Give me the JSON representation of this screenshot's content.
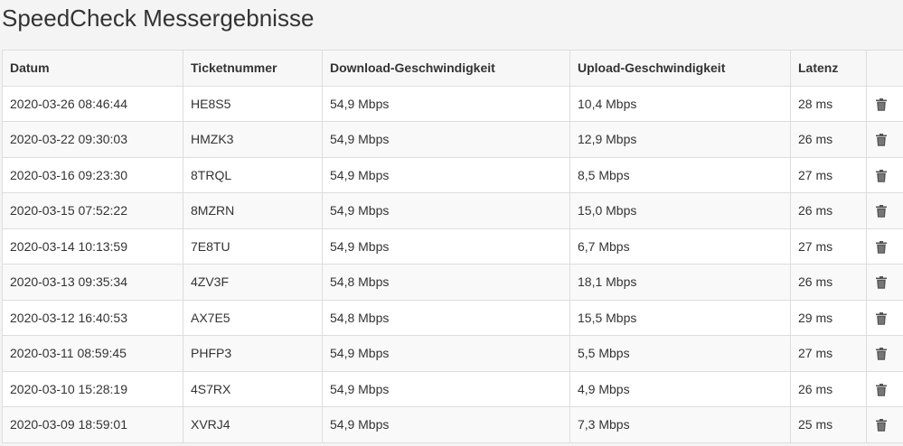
{
  "title": "SpeedCheck Messergebnisse",
  "columns": [
    "Datum",
    "Ticketnummer",
    "Download-Geschwindigkeit",
    "Upload-Geschwindigkeit",
    "Latenz",
    ""
  ],
  "rows": [
    [
      "2020-03-26 08:46:44",
      "HE8S5",
      "54,9 Mbps",
      "10,4 Mbps",
      "28 ms"
    ],
    [
      "2020-03-22 09:30:03",
      "HMZK3",
      "54,9 Mbps",
      "12,9 Mbps",
      "26 ms"
    ],
    [
      "2020-03-16 09:23:30",
      "8TRQL",
      "54,9 Mbps",
      "8,5 Mbps",
      "27 ms"
    ],
    [
      "2020-03-15 07:52:22",
      "8MZRN",
      "54,9 Mbps",
      "15,0 Mbps",
      "26 ms"
    ],
    [
      "2020-03-14 10:13:59",
      "7E8TU",
      "54,9 Mbps",
      "6,7 Mbps",
      "27 ms"
    ],
    [
      "2020-03-13 09:35:34",
      "4ZV3F",
      "54,8 Mbps",
      "18,1 Mbps",
      "26 ms"
    ],
    [
      "2020-03-12 16:40:53",
      "AX7E5",
      "54,8 Mbps",
      "15,5 Mbps",
      "29 ms"
    ],
    [
      "2020-03-11 08:59:45",
      "PHFP3",
      "54,9 Mbps",
      "5,5 Mbps",
      "27 ms"
    ],
    [
      "2020-03-10 15:28:19",
      "4S7RX",
      "54,9 Mbps",
      "4,9 Mbps",
      "26 ms"
    ],
    [
      "2020-03-09 18:59:01",
      "XVRJ4",
      "54,9 Mbps",
      "7,3 Mbps",
      "25 ms"
    ]
  ],
  "delete_icon": "trash-icon"
}
